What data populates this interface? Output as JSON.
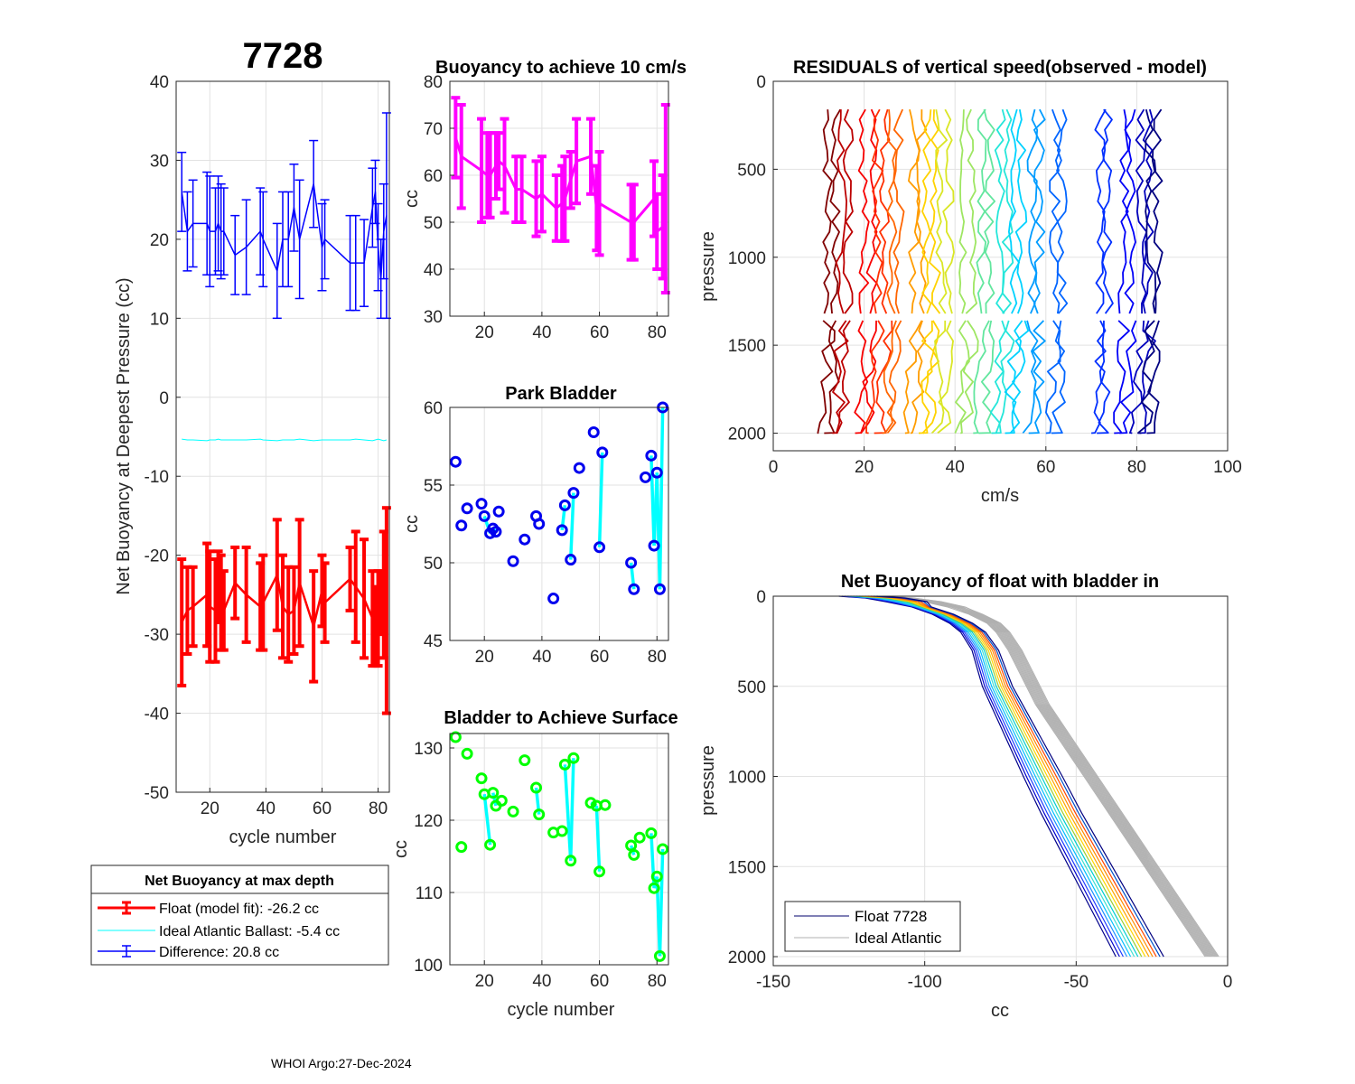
{
  "figure": {
    "float_id": "7728",
    "footer": "WHOI Argo:27-Dec-2024"
  },
  "colors": {
    "float_fit": "#ff0000",
    "ideal": "#00ffff",
    "difference": "#0000ff",
    "buoyancy10": "#ff00ff",
    "park": "#0000ee",
    "surface": "#00ff00",
    "link": "#00ffff",
    "ideal_profile": "#b0b0b0"
  },
  "chart_data": [
    {
      "id": "net_buoyancy",
      "type": "errorbar",
      "title": "7728",
      "xlabel": "cycle number",
      "ylabel": "Net Buoyancy at Deepest Pressure (cc)",
      "xlim": [
        8,
        84
      ],
      "ylim": [
        -50,
        40
      ],
      "xticks": [
        20,
        40,
        60,
        80
      ],
      "yticks": [
        40,
        30,
        20,
        10,
        0,
        -10,
        -20,
        -30,
        -40,
        -50
      ],
      "grid": true,
      "x": [
        10,
        12,
        14,
        19,
        20,
        22,
        23,
        24,
        25,
        29,
        33,
        38,
        39,
        44,
        46,
        48,
        50,
        52,
        57,
        60,
        61,
        70,
        72,
        75,
        78,
        79,
        80,
        81,
        82,
        83
      ],
      "series": [
        {
          "name": "Float (model fit)",
          "values": [
            -28.5,
            -27,
            -26.5,
            -25,
            -26.5,
            -27,
            -24,
            -26,
            -27,
            -23.5,
            -25,
            -26.5,
            -26,
            -22.5,
            -26.5,
            -27.5,
            -27,
            -23.5,
            -29,
            -24.5,
            -26,
            -23,
            -24,
            -25.5,
            -28,
            -29,
            -28,
            -26,
            -25,
            -27
          ],
          "err": [
            8,
            5.5,
            5,
            6.5,
            7,
            6.5,
            4.5,
            6,
            5,
            4.5,
            6,
            5.5,
            6,
            7,
            6.5,
            6,
            5.5,
            8,
            7,
            4.5,
            5,
            4,
            7,
            7.5,
            6,
            5,
            6,
            4,
            8,
            13
          ]
        },
        {
          "name": "Ideal Atlantic Ballast",
          "values": [
            -5.3,
            -5.4,
            -5.4,
            -5.5,
            -5.4,
            -5.4,
            -5.3,
            -5.4,
            -5.4,
            -5.4,
            -5.4,
            -5.3,
            -5.4,
            -5.5,
            -5.4,
            -5.4,
            -5.4,
            -5.3,
            -5.5,
            -5.4,
            -5.4,
            -5.4,
            -5.3,
            -5.4,
            -5.5,
            -5.4,
            -5.3,
            -5.4,
            -5.5,
            -5.4
          ]
        },
        {
          "name": "Difference",
          "values": [
            26,
            21,
            22,
            22,
            21,
            21,
            22,
            21,
            21,
            18,
            19,
            21,
            20,
            16,
            20,
            20,
            24,
            20,
            27,
            19,
            20,
            17,
            17,
            17,
            24,
            26,
            19,
            15,
            21,
            23
          ],
          "err": [
            5,
            5,
            5.5,
            6.5,
            7,
            5.5,
            6,
            6,
            5.5,
            5,
            6,
            5.5,
            6,
            6,
            6,
            6,
            5.5,
            7.5,
            5.5,
            5.5,
            5,
            6,
            6,
            5.5,
            5,
            4,
            5.5,
            5,
            6,
            13
          ]
        }
      ],
      "legend": {
        "title": "Net Buoyancy at max depth",
        "entries": [
          "Float (model fit): -26.2 cc",
          "Ideal Atlantic Ballast:  -5.4 cc",
          "Difference:  20.8 cc"
        ],
        "position": "below-left"
      }
    },
    {
      "id": "buoyancy_10cms",
      "type": "errorbar",
      "title": "Buoyancy to achieve 10 cm/s",
      "xlabel": "",
      "ylabel": "cc",
      "xlim": [
        8,
        84
      ],
      "ylim": [
        30,
        80
      ],
      "xticks": [
        20,
        40,
        60,
        80
      ],
      "yticks": [
        80,
        70,
        60,
        50,
        40,
        30
      ],
      "grid": true,
      "x": [
        10,
        12,
        19,
        21,
        22,
        24,
        25,
        27,
        31,
        33,
        38,
        40,
        45,
        47,
        48,
        50,
        52,
        57,
        59,
        60,
        71,
        72,
        79,
        80,
        82,
        83
      ],
      "values": [
        68,
        64,
        61,
        60,
        60,
        62,
        63,
        62,
        57,
        57,
        55,
        56,
        53,
        54,
        55,
        59,
        63,
        64,
        53,
        54,
        50,
        50,
        55,
        48,
        49,
        55
      ],
      "err": [
        8.5,
        11,
        11,
        9,
        9,
        7,
        6,
        10,
        7,
        7,
        8,
        8,
        7,
        8,
        9,
        6,
        9,
        8,
        9,
        11,
        8,
        8,
        8,
        8,
        11,
        20
      ]
    },
    {
      "id": "park_bladder",
      "type": "scatter",
      "title": "Park Bladder",
      "xlabel": "",
      "ylabel": "cc",
      "xlim": [
        8,
        84
      ],
      "ylim": [
        45,
        60
      ],
      "xticks": [
        20,
        40,
        60,
        80
      ],
      "yticks": [
        60,
        55,
        50,
        45
      ],
      "grid": true,
      "x": [
        10,
        12,
        14,
        19,
        20,
        22,
        23,
        24,
        25,
        30,
        34,
        38,
        39,
        44,
        47,
        48,
        50,
        51,
        53,
        58,
        60,
        61,
        71,
        72,
        76,
        78,
        79,
        80,
        81,
        82
      ],
      "values": [
        56.5,
        52.4,
        53.5,
        53.8,
        53.0,
        51.9,
        52.2,
        52.0,
        53.3,
        50.1,
        51.5,
        53.0,
        52.5,
        47.7,
        52.1,
        53.7,
        50.2,
        54.5,
        56.1,
        58.4,
        51.0,
        57.1,
        50.0,
        48.3,
        55.5,
        56.9,
        51.1,
        55.8,
        48.3,
        60.0
      ]
    },
    {
      "id": "bladder_surface",
      "type": "scatter",
      "title": "Bladder to Achieve Surface",
      "xlabel": "cycle number",
      "ylabel": "cc",
      "xlim": [
        8,
        84
      ],
      "ylim": [
        100,
        132
      ],
      "xticks": [
        20,
        40,
        60,
        80
      ],
      "yticks": [
        130,
        120,
        110,
        100
      ],
      "grid": true,
      "x": [
        10,
        12,
        14,
        19,
        20,
        22,
        23,
        24,
        26,
        30,
        34,
        38,
        39,
        44,
        47,
        48,
        50,
        51,
        57,
        59,
        60,
        62,
        71,
        72,
        74,
        78,
        79,
        80,
        81,
        82
      ],
      "values": [
        131.5,
        116.3,
        129.2,
        125.8,
        123.6,
        116.6,
        123.8,
        122.0,
        122.7,
        121.2,
        128.3,
        124.5,
        120.8,
        118.3,
        118.5,
        127.7,
        114.4,
        128.6,
        122.4,
        122.0,
        112.9,
        122.1,
        116.5,
        115.2,
        117.6,
        118.2,
        110.6,
        112.2,
        101.2,
        116.0
      ]
    },
    {
      "id": "residuals",
      "type": "line",
      "title": "RESIDUALS of vertical speed(observed - model)",
      "xlabel": "cm/s",
      "ylabel": "pressure",
      "xlim": [
        0,
        100
      ],
      "ylim": [
        0,
        2100
      ],
      "y_reversed": true,
      "xticks": [
        0,
        20,
        40,
        60,
        80,
        100
      ],
      "yticks": [
        0,
        500,
        1000,
        1500,
        2000
      ],
      "grid": true,
      "offsets": [
        12,
        15,
        20,
        23,
        26,
        31,
        34,
        37,
        42,
        46,
        50,
        53,
        57,
        62,
        72,
        77,
        81,
        83
      ]
    },
    {
      "id": "profile",
      "type": "line",
      "title": "Net Buoyancy of float with bladder in",
      "xlabel": "cc",
      "ylabel": "pressure",
      "xlim": [
        -150,
        0
      ],
      "ylim": [
        0,
        2050
      ],
      "y_reversed": true,
      "xticks": [
        -150,
        -100,
        -50,
        0
      ],
      "yticks": [
        0,
        500,
        1000,
        1500,
        2000
      ],
      "grid": true,
      "float_curve": {
        "pressure": [
          0,
          10,
          30,
          60,
          100,
          150,
          200,
          300,
          400,
          500,
          600,
          700,
          800,
          900,
          1000,
          1200,
          1400,
          1600,
          1800,
          2000
        ],
        "cc": [
          -126,
          -117,
          -110,
          -101,
          -94,
          -88,
          -84,
          -80,
          -78,
          -76,
          -73,
          -70,
          -67,
          -64,
          -61,
          -55,
          -48.5,
          -42,
          -35.5,
          -29
        ]
      },
      "ideal_curve": {
        "pressure": [
          0,
          10,
          30,
          60,
          100,
          150,
          200,
          300,
          400,
          500,
          600,
          700,
          800,
          900,
          1000,
          1200,
          1400,
          1600,
          1800,
          2000
        ],
        "cc": [
          -116,
          -107,
          -98,
          -90,
          -83,
          -77,
          -74,
          -70,
          -67,
          -64,
          -61,
          -57,
          -53,
          -49,
          -45,
          -37,
          -29,
          -21,
          -13,
          -5
        ]
      },
      "legend": {
        "entries": [
          "Float 7728",
          "Ideal Atlantic"
        ],
        "position": "bottom-left"
      }
    }
  ]
}
